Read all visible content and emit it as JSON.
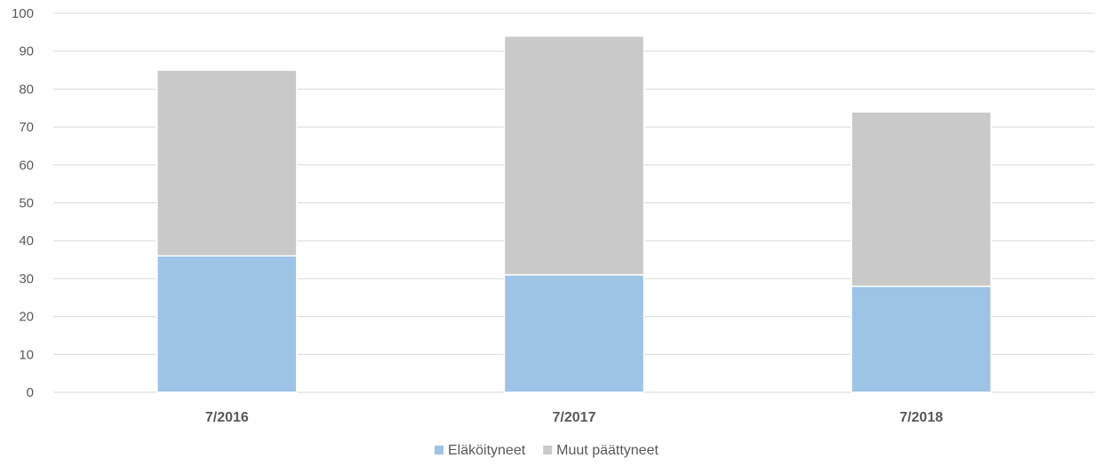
{
  "chart_data": {
    "type": "bar",
    "stacked": true,
    "categories": [
      "7/2016",
      "7/2017",
      "7/2018"
    ],
    "series": [
      {
        "name": "Eläköityneet",
        "values": [
          36,
          31,
          28
        ],
        "color": "#9dc3e6"
      },
      {
        "name": "Muut päättyneet",
        "values": [
          49,
          63,
          46
        ],
        "color": "#c9c9c9"
      }
    ],
    "ylim": [
      0,
      100
    ],
    "yticks": [
      0,
      10,
      20,
      30,
      40,
      50,
      60,
      70,
      80,
      90,
      100
    ],
    "grid": true,
    "legend": "bottom-center",
    "title": "",
    "xlabel": "",
    "ylabel": ""
  }
}
